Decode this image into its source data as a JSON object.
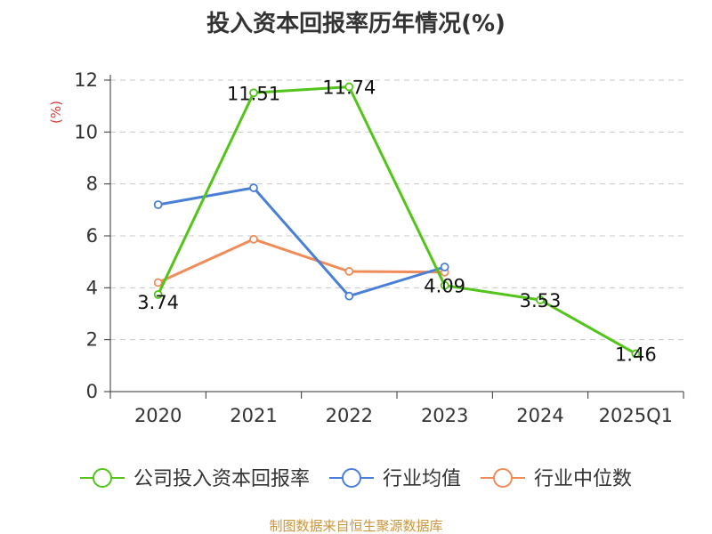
{
  "chart_data": {
    "type": "line",
    "title": "投入资本回报率历年情况(%)",
    "ylabel": "(%)",
    "xlabel": "",
    "categories": [
      "2020",
      "2021",
      "2022",
      "2023",
      "2024",
      "2025Q1"
    ],
    "ylim": [
      0,
      12
    ],
    "yticks": [
      0,
      2,
      4,
      6,
      8,
      10,
      12
    ],
    "grid": true,
    "legend_position": "bottom",
    "series": [
      {
        "name": "公司投入资本回报率",
        "color": "#52c41a",
        "values": [
          3.74,
          11.51,
          11.74,
          4.09,
          3.53,
          1.46
        ],
        "labels": [
          "3.74",
          "11.51",
          "11.74",
          "4.09",
          "3.53",
          "1.46"
        ]
      },
      {
        "name": "行业均值",
        "color": "#4a7fd8",
        "values": [
          7.2,
          7.85,
          3.68,
          4.8,
          null,
          null
        ]
      },
      {
        "name": "行业中位数",
        "color": "#f08c5a",
        "values": [
          4.2,
          5.87,
          4.63,
          4.6,
          null,
          null
        ]
      }
    ],
    "source": "制图数据来自恒生聚源数据库"
  }
}
